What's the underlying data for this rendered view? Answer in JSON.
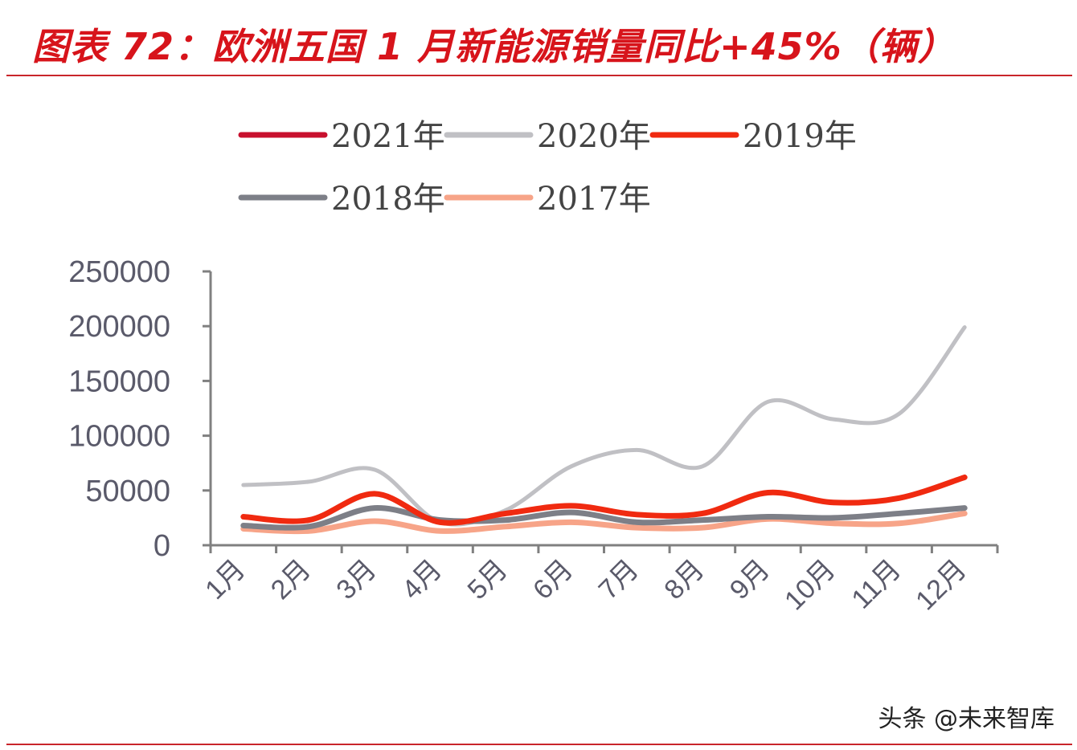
{
  "title": "图表 72：欧洲五国 1 月新能源销量同比+45%（辆）",
  "watermark": "头条 @未来智库",
  "chart_data": {
    "type": "line",
    "title": "图表 72：欧洲五国 1 月新能源销量同比+45%（辆）",
    "xlabel": "",
    "ylabel": "",
    "ylim": [
      0,
      250000
    ],
    "yticks": [
      "0",
      "50000",
      "100000",
      "150000",
      "200000",
      "250000"
    ],
    "categories": [
      "1月",
      "2月",
      "3月",
      "4月",
      "5月",
      "6月",
      "7月",
      "8月",
      "9月",
      "10月",
      "11月",
      "12月"
    ],
    "legend_position": "top",
    "grid": false,
    "series": [
      {
        "name": "2021年",
        "color": "#c8102e",
        "values": [
          null,
          null,
          null,
          null,
          null,
          null,
          null,
          null,
          null,
          null,
          null,
          null
        ]
      },
      {
        "name": "2020年",
        "color": "#c0c0c4",
        "values": [
          55000,
          58000,
          69000,
          21000,
          32000,
          72000,
          87000,
          72000,
          131000,
          115000,
          120000,
          199000
        ]
      },
      {
        "name": "2019年",
        "color": "#f02a10",
        "values": [
          26000,
          23000,
          47000,
          21000,
          29000,
          36000,
          28000,
          29000,
          48000,
          39000,
          43000,
          62000
        ]
      },
      {
        "name": "2018年",
        "color": "#7d7f87",
        "values": [
          18000,
          17000,
          34000,
          23000,
          23000,
          30000,
          21000,
          23000,
          26000,
          25000,
          29000,
          34000
        ]
      },
      {
        "name": "2017年",
        "color": "#f7a488",
        "values": [
          15000,
          13000,
          22000,
          13000,
          17000,
          21000,
          16000,
          16000,
          24000,
          20000,
          20000,
          29000
        ]
      }
    ]
  }
}
